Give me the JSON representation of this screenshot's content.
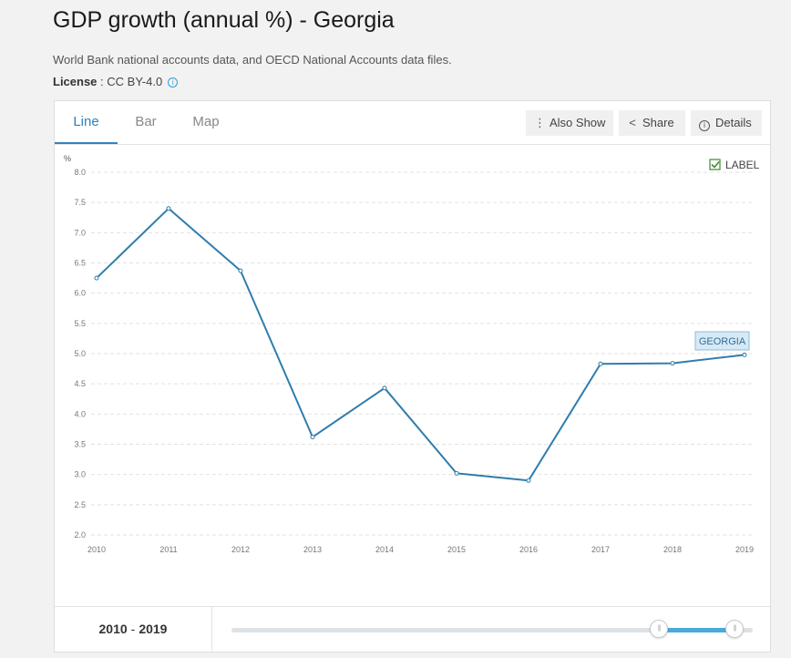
{
  "header": {
    "title": "GDP growth (annual %) - Georgia",
    "source": "World Bank national accounts data, and OECD National Accounts data files.",
    "license_label": "License",
    "license_sep": " : ",
    "license_value": "CC BY-4.0",
    "info_glyph": "i"
  },
  "tabs": [
    {
      "label": "Line",
      "active": true
    },
    {
      "label": "Bar",
      "active": false
    },
    {
      "label": "Map",
      "active": false
    }
  ],
  "toolbar": {
    "also_show": "Also Show",
    "share": "Share",
    "details": "Details",
    "also_show_glyph": "⋮",
    "share_glyph": "<",
    "details_glyph": "i"
  },
  "label_toggle": {
    "text": "LABEL",
    "checked": true
  },
  "series_label": "GEORGIA",
  "colors": {
    "line": "#2f7dad",
    "accent": "#2f83c0",
    "series_label_bg": "#d6e9f5"
  },
  "chart_data": {
    "type": "line",
    "ylabel": "%",
    "ylim": [
      2.0,
      8.0
    ],
    "yticks": [
      "2.0",
      "2.5",
      "3.0",
      "3.5",
      "4.0",
      "4.5",
      "5.0",
      "5.5",
      "6.0",
      "6.5",
      "7.0",
      "7.5",
      "8.0"
    ],
    "x": [
      "2010",
      "2011",
      "2012",
      "2013",
      "2014",
      "2015",
      "2016",
      "2017",
      "2018",
      "2019"
    ],
    "series": [
      {
        "name": "GEORGIA",
        "values": [
          6.25,
          7.4,
          6.37,
          3.62,
          4.43,
          3.02,
          2.9,
          4.83,
          4.84,
          4.98
        ]
      }
    ],
    "grid": true
  },
  "range": {
    "start": "2010",
    "end": "2019",
    "sep": "-",
    "slider_start_fraction": 0.82,
    "slider_end_fraction": 0.965
  }
}
